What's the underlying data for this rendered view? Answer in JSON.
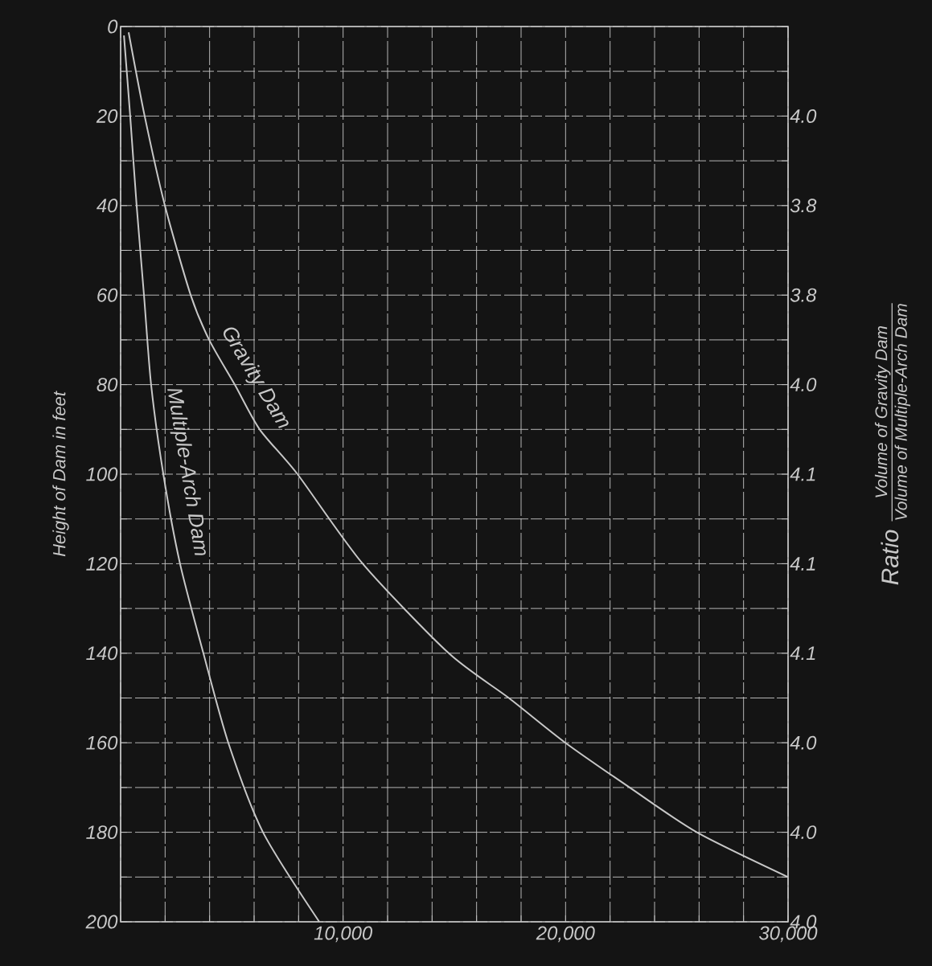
{
  "chart_data": {
    "type": "line",
    "ylabel": "Height of Dam in feet",
    "annotations": [
      "\\text{Ratio}\\;\\frac{\\text{Volume of Gravity Dam}}{\\text{Volume of Multiple-Arch Dam}}",
      "4.0",
      "3.8",
      "3.8",
      "4.0",
      "4.1",
      "4.1",
      "4.1",
      "4.0",
      "4.0",
      "4.0"
    ],
    "series": [
      {
        "name": "Gravity Dam",
        "color": "#c8c8c8",
        "x": [
          360,
          1080,
          1990,
          3150,
          3980,
          5130,
          6250,
          7950,
          10880,
          14750,
          17450,
          19990,
          22880,
          25900,
          30000
        ],
        "values": [
          1.3,
          20,
          40,
          60,
          70,
          80,
          90,
          100,
          120,
          140,
          150,
          160,
          170,
          180,
          190
        ]
      },
      {
        "name": "Multiple-Arch Dam",
        "color": "#c8c8c8",
        "x": [
          150,
          430,
          720,
          1050,
          1370,
          1920,
          2670,
          3720,
          4840,
          6400,
          8930
        ],
        "values": [
          2,
          20,
          40,
          60,
          80,
          100,
          120,
          140,
          160,
          180,
          200
        ]
      }
    ],
    "xlim": [
      0,
      30000
    ],
    "xticks": [
      {
        "value": 0,
        "label": null
      },
      {
        "value": 2000,
        "label": null
      },
      {
        "value": 4000,
        "label": null
      },
      {
        "value": 6000,
        "label": null
      },
      {
        "value": 8000,
        "label": null
      },
      {
        "value": 10000,
        "label": "10,000"
      },
      {
        "value": 12000,
        "label": null
      },
      {
        "value": 14000,
        "label": null
      },
      {
        "value": 16000,
        "label": null
      },
      {
        "value": 18000,
        "label": null
      },
      {
        "value": 20000,
        "label": "20,000"
      },
      {
        "value": 22000,
        "label": null
      },
      {
        "value": 24000,
        "label": null
      },
      {
        "value": 26000,
        "label": null
      },
      {
        "value": 28000,
        "label": null
      },
      {
        "value": 30000,
        "label": "30,000"
      }
    ],
    "ylim": [
      200,
      0
    ],
    "yticks": [
      0,
      {
        "value": 10,
        "label": null
      },
      20,
      {
        "value": 30,
        "label": null
      },
      40,
      {
        "value": 50,
        "label": null
      },
      60,
      {
        "value": 70,
        "label": null
      },
      80,
      {
        "value": 90,
        "label": null
      },
      100,
      {
        "value": 110,
        "label": null
      },
      120,
      {
        "value": 130,
        "label": null
      },
      140,
      {
        "value": 150,
        "label": null
      },
      160,
      {
        "value": 170,
        "label": null
      },
      180,
      {
        "value": 190,
        "label": null
      },
      200
    ],
    "grid": true,
    "legend": false,
    "marker": "none",
    "line_style": "solid"
  }
}
